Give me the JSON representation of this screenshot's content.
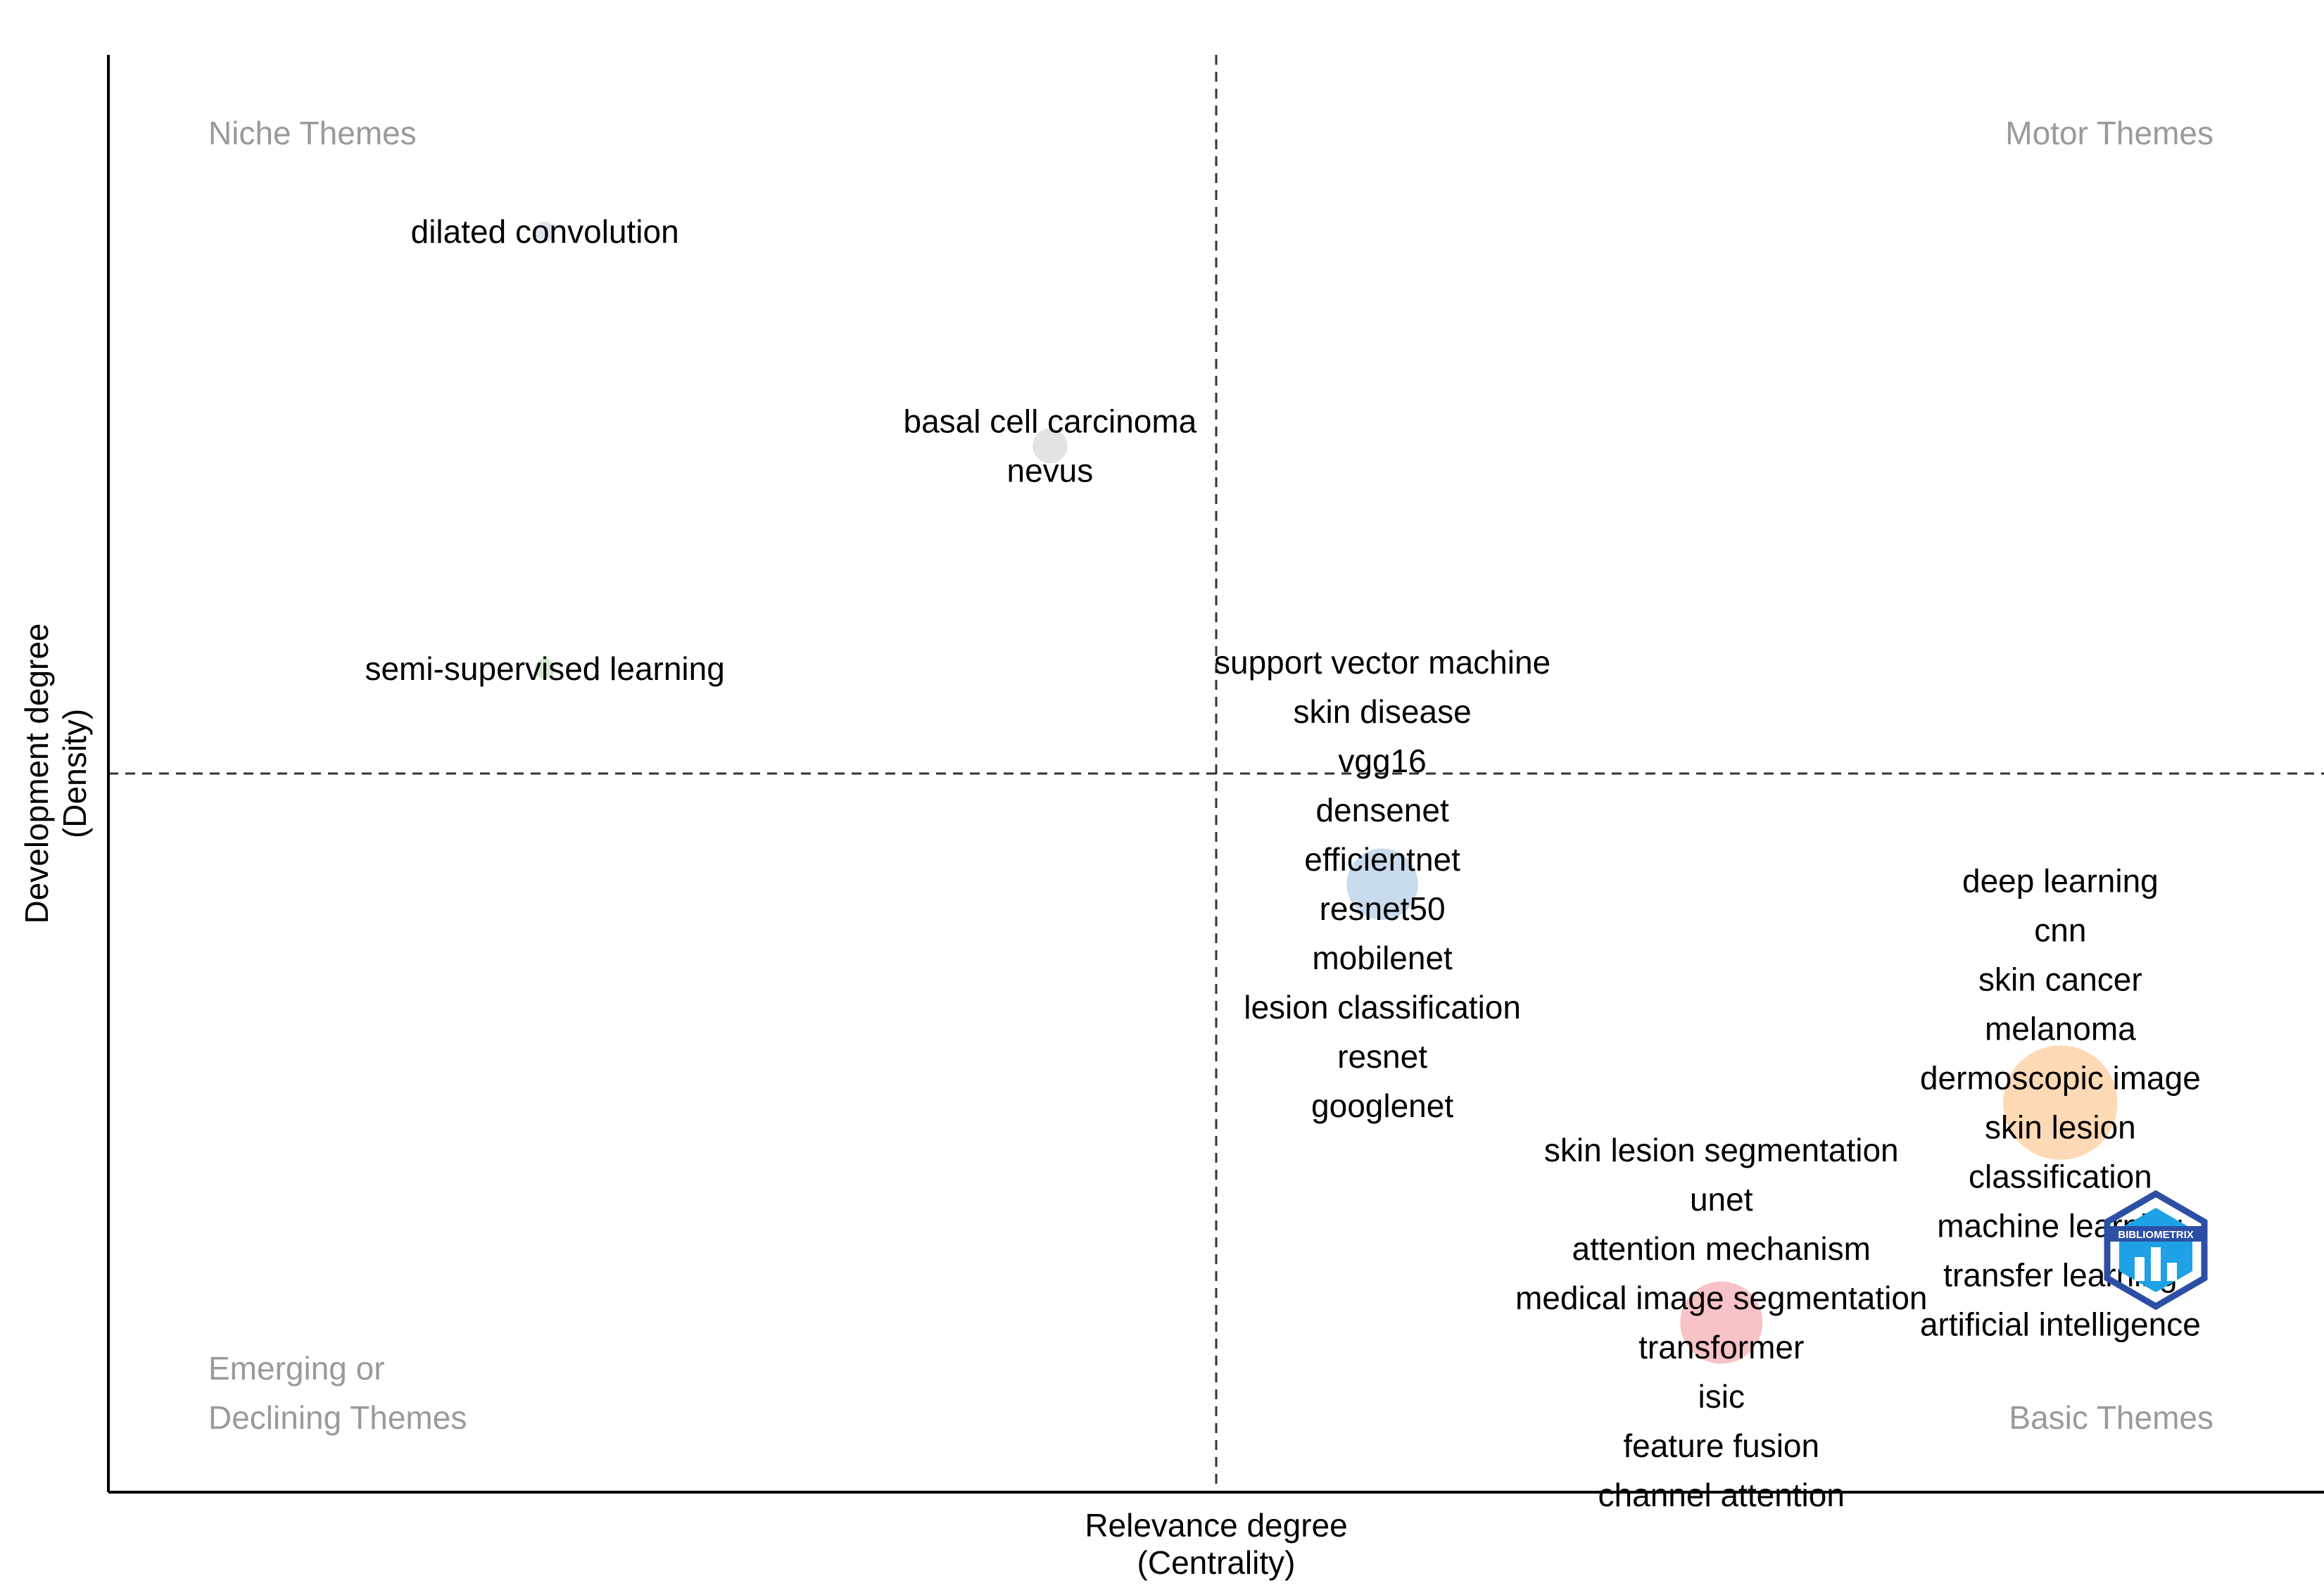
{
  "chart_data": {
    "type": "scatter",
    "title": "",
    "xlabel": "Relevance degree",
    "xlabel_sub": "(Centrality)",
    "ylabel": "Development degree",
    "ylabel_sub": "(Density)",
    "xlim": [
      0,
      1
    ],
    "ylim": [
      0,
      1
    ],
    "x_median": 0.5,
    "y_median": 0.5,
    "quadrant_labels": {
      "top_left": "Niche Themes",
      "top_right": "Motor Themes",
      "bottom_left_line1": "Emerging or",
      "bottom_left_line2": "Declining Themes",
      "bottom_right": "Basic Themes"
    },
    "clusters": [
      {
        "name": "dilated convolution",
        "x": 0.197,
        "y": 0.877,
        "size": 0.22,
        "color": "#dfe3f1",
        "labels": [
          "dilated convolution"
        ]
      },
      {
        "name": "basal cell carcinoma",
        "x": 0.425,
        "y": 0.728,
        "size": 0.38,
        "color": "#e3e3e3",
        "labels": [
          "basal cell carcinoma",
          "nevus"
        ]
      },
      {
        "name": "semi-supervised learning",
        "x": 0.197,
        "y": 0.573,
        "size": 0.22,
        "color": "#d7ebd3",
        "labels": [
          "semi-supervised learning"
        ]
      },
      {
        "name": "support vector machine",
        "x": 0.575,
        "y": 0.423,
        "size": 0.78,
        "color": "#c9dcee",
        "labels": [
          "support vector machine",
          "skin disease",
          "vgg16",
          "densenet",
          "efficientnet",
          "resnet50",
          "mobilenet",
          "lesion classification",
          "resnet",
          "googlenet"
        ]
      },
      {
        "name": "deep learning",
        "x": 0.881,
        "y": 0.271,
        "size": 1.25,
        "color": "#fdd9b5",
        "labels": [
          "deep learning",
          "cnn",
          "skin cancer",
          "melanoma",
          "dermoscopic image",
          "skin lesion",
          "classification",
          "machine learning",
          "transfer learning",
          "artificial intelligence"
        ]
      },
      {
        "name": "skin lesion segmentation",
        "x": 0.728,
        "y": 0.118,
        "size": 0.9,
        "color": "#f7c3c6",
        "labels": [
          "skin lesion segmentation",
          "unet",
          "attention mechanism",
          "medical image segmentation",
          "transformer",
          "isic",
          "feature fusion",
          "channel attention"
        ]
      }
    ]
  },
  "watermark": {
    "text": "BIBLIOMETRIX",
    "colors": {
      "outer": "#2c4fa5",
      "inner": "#1ea1e6"
    }
  }
}
